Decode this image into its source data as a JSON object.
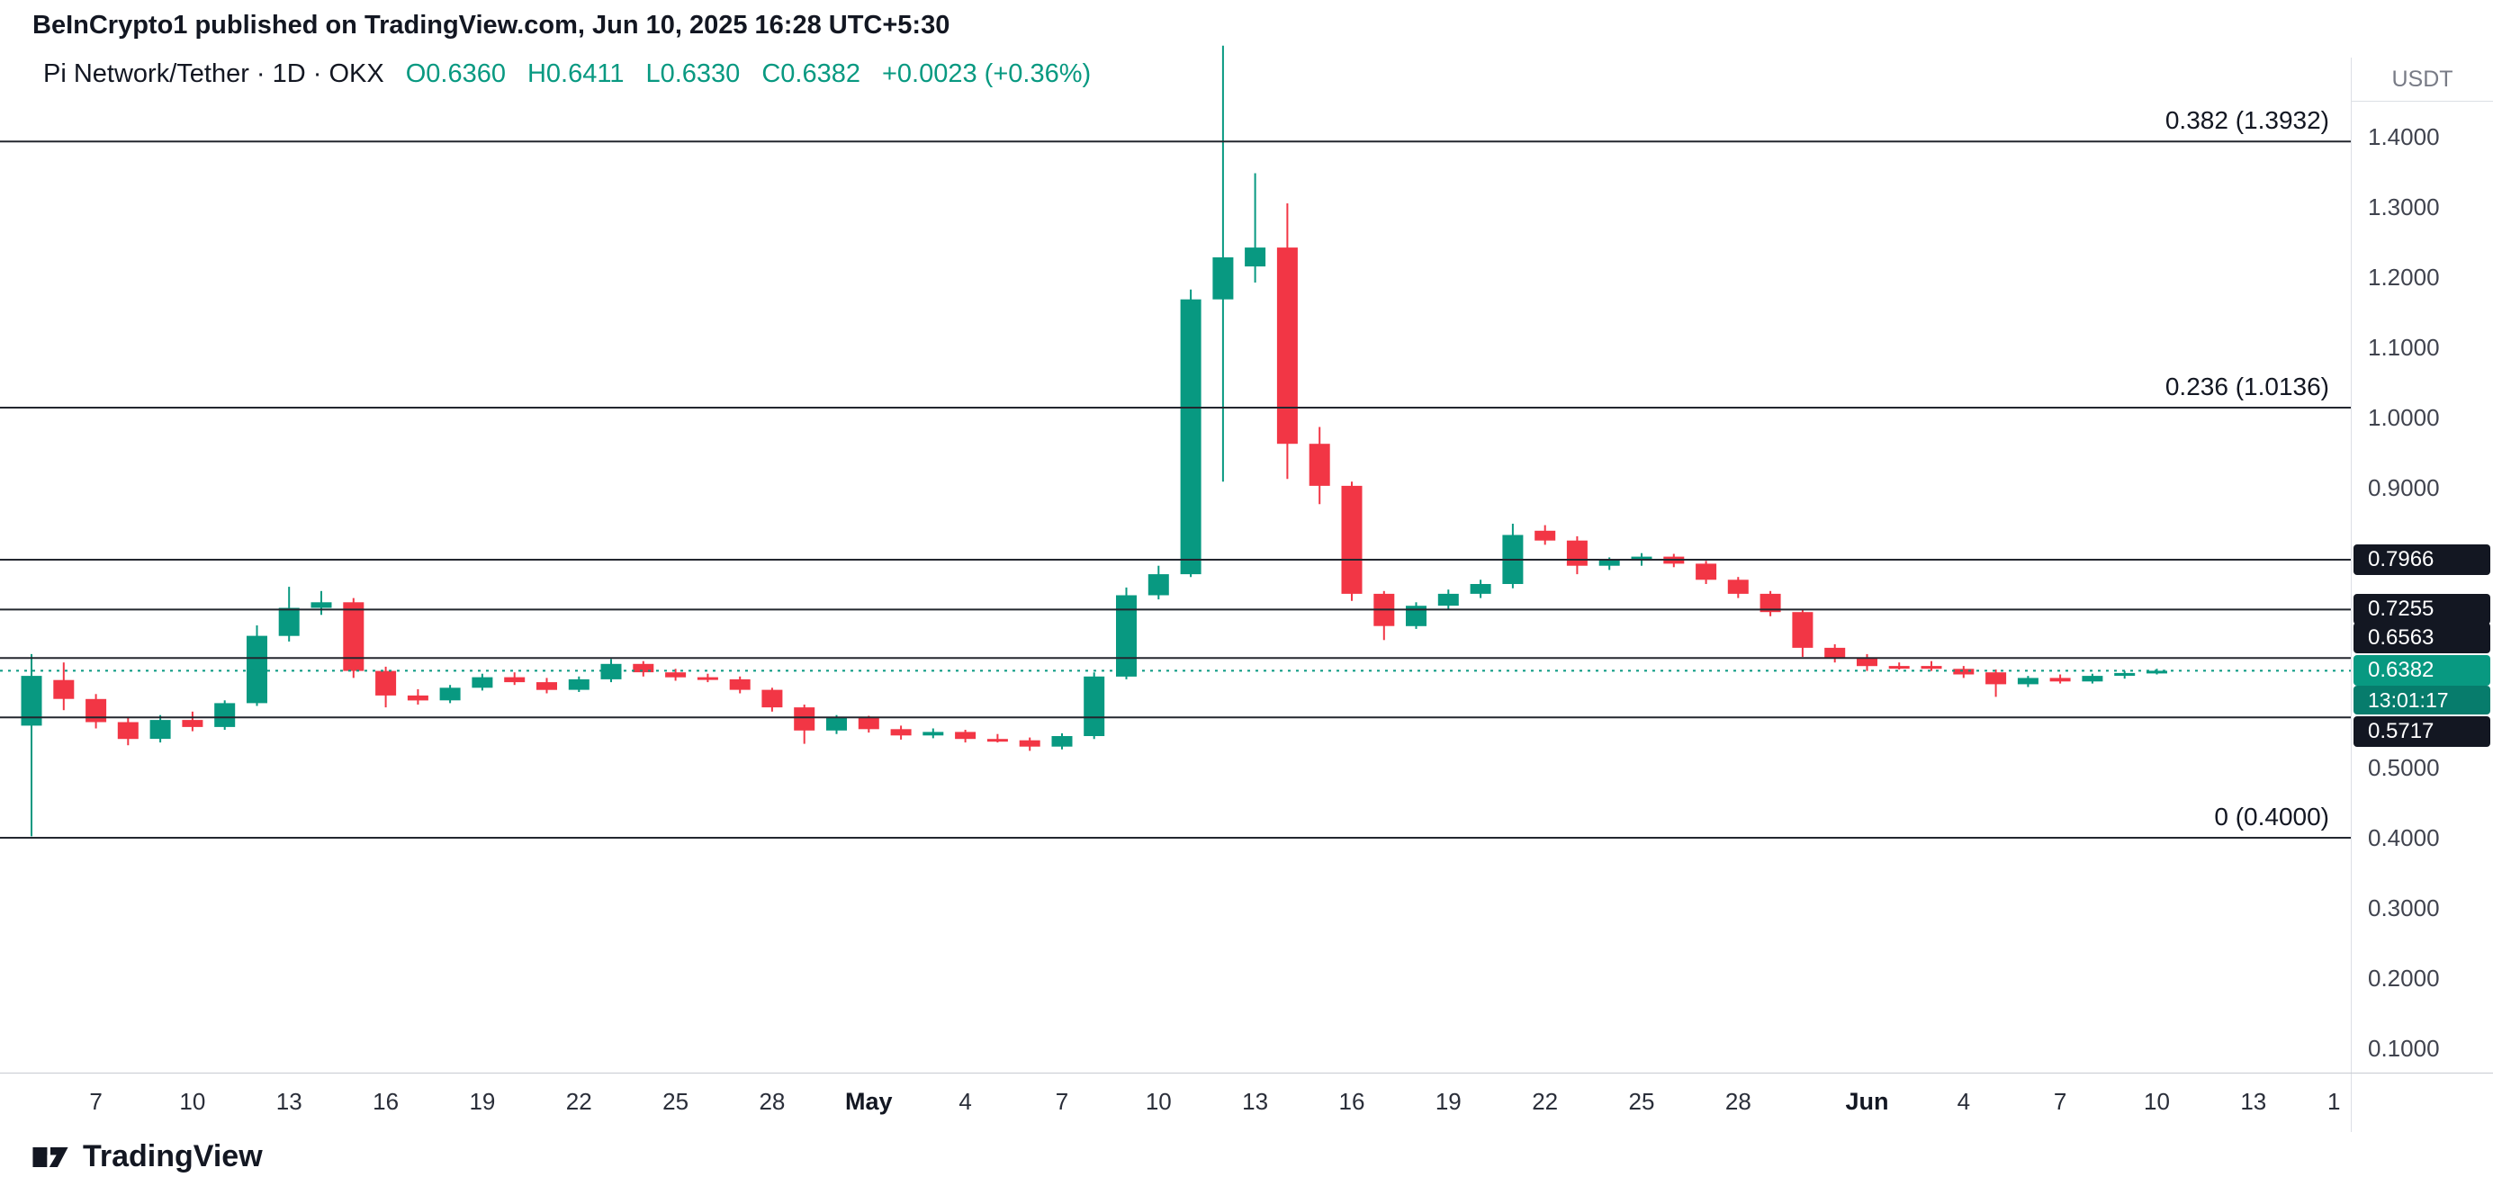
{
  "attribution": "BeInCrypto1 published on TradingView.com, Jun 10, 2025 16:28 UTC+5:30",
  "symbol_header": {
    "title": "Pi Network/Tether · 1D · OKX",
    "open": "O0.6360",
    "high": "H0.6411",
    "low": "L0.6330",
    "close": "C0.6382",
    "change": "+0.0023 (+0.36%)"
  },
  "price_axis": {
    "currency_label": "USDT",
    "ticks": [
      {
        "label": "1.4000",
        "price": 1.4
      },
      {
        "label": "1.3000",
        "price": 1.3
      },
      {
        "label": "1.2000",
        "price": 1.2
      },
      {
        "label": "1.1000",
        "price": 1.1
      },
      {
        "label": "1.0000",
        "price": 1.0
      },
      {
        "label": "0.9000",
        "price": 0.9
      },
      {
        "label": "0.5000",
        "price": 0.5
      },
      {
        "label": "0.4000",
        "price": 0.4
      },
      {
        "label": "0.3000",
        "price": 0.3
      },
      {
        "label": "0.2000",
        "price": 0.2
      },
      {
        "label": "0.1000",
        "price": 0.1
      }
    ],
    "badges": [
      {
        "label": "0.7966",
        "price": 0.7966
      },
      {
        "label": "0.7255",
        "price": 0.7255
      },
      {
        "label": "0.6563",
        "price": 0.6563
      },
      {
        "label": "0.5717",
        "price": 0.5717
      }
    ],
    "current": {
      "label": "0.6382",
      "countdown": "13:01:17"
    }
  },
  "time_axis": {
    "ticks": [
      {
        "label": "7",
        "day": 2
      },
      {
        "label": "10",
        "day": 5
      },
      {
        "label": "13",
        "day": 8
      },
      {
        "label": "16",
        "day": 11
      },
      {
        "label": "19",
        "day": 14
      },
      {
        "label": "22",
        "day": 17
      },
      {
        "label": "25",
        "day": 20
      },
      {
        "label": "28",
        "day": 23
      },
      {
        "label": "May",
        "day": 26,
        "bold": true
      },
      {
        "label": "4",
        "day": 29
      },
      {
        "label": "7",
        "day": 32
      },
      {
        "label": "10",
        "day": 35
      },
      {
        "label": "13",
        "day": 38
      },
      {
        "label": "16",
        "day": 41
      },
      {
        "label": "19",
        "day": 44
      },
      {
        "label": "22",
        "day": 47
      },
      {
        "label": "25",
        "day": 50
      },
      {
        "label": "28",
        "day": 53
      },
      {
        "label": "Jun",
        "day": 57,
        "bold": true
      },
      {
        "label": "4",
        "day": 60
      },
      {
        "label": "7",
        "day": 63
      },
      {
        "label": "10",
        "day": 66
      },
      {
        "label": "13",
        "day": 69
      },
      {
        "label": "1",
        "day": 71.5
      }
    ]
  },
  "footer": {
    "brand": "TradingView"
  },
  "colors": {
    "up": "#089981",
    "down": "#F23645",
    "level_line": "#23272f",
    "current_line": "#089981",
    "badge_bg": "#131722",
    "text_dark": "#131722",
    "text_muted": "#787b86",
    "border": "#dcdfe5"
  },
  "chart_data": {
    "type": "candlestick",
    "pair": "Pi Network/Tether",
    "interval": "1D",
    "exchange": "OKX",
    "quote_currency": "USDT",
    "open": 0.636,
    "high": 0.6411,
    "low": 0.633,
    "close": 0.6382,
    "change": "+0.0023 (+0.36%)",
    "current_price": 0.6382,
    "ylim": [
      0.1,
      1.4
    ],
    "fib_levels": [
      {
        "price": 1.3932,
        "label": "0.382 (1.3932)"
      },
      {
        "price": 1.0136,
        "label": "0.236 (1.0136)"
      },
      {
        "price": 0.7966
      },
      {
        "price": 0.7255
      },
      {
        "price": 0.6563
      },
      {
        "price": 0.5717
      },
      {
        "price": 0.4,
        "label": "0 (0.4000)"
      }
    ],
    "candles": [
      [
        0.56,
        0.662,
        0.402,
        0.631
      ],
      [
        0.625,
        0.65,
        0.582,
        0.598
      ],
      [
        0.598,
        0.605,
        0.556,
        0.565
      ],
      [
        0.565,
        0.572,
        0.532,
        0.541
      ],
      [
        0.541,
        0.575,
        0.536,
        0.568
      ],
      [
        0.568,
        0.58,
        0.552,
        0.558
      ],
      [
        0.558,
        0.596,
        0.554,
        0.592
      ],
      [
        0.592,
        0.703,
        0.588,
        0.688
      ],
      [
        0.688,
        0.758,
        0.68,
        0.728
      ],
      [
        0.728,
        0.752,
        0.718,
        0.736
      ],
      [
        0.736,
        0.742,
        0.628,
        0.638
      ],
      [
        0.638,
        0.644,
        0.586,
        0.603
      ],
      [
        0.603,
        0.612,
        0.59,
        0.596
      ],
      [
        0.596,
        0.618,
        0.592,
        0.614
      ],
      [
        0.614,
        0.634,
        0.61,
        0.629
      ],
      [
        0.629,
        0.636,
        0.618,
        0.622
      ],
      [
        0.622,
        0.628,
        0.606,
        0.611
      ],
      [
        0.611,
        0.63,
        0.608,
        0.626
      ],
      [
        0.626,
        0.655,
        0.622,
        0.648
      ],
      [
        0.648,
        0.652,
        0.63,
        0.636
      ],
      [
        0.636,
        0.641,
        0.624,
        0.629
      ],
      [
        0.629,
        0.634,
        0.622,
        0.626
      ],
      [
        0.626,
        0.63,
        0.606,
        0.611
      ],
      [
        0.611,
        0.614,
        0.58,
        0.586
      ],
      [
        0.586,
        0.59,
        0.534,
        0.553
      ],
      [
        0.553,
        0.575,
        0.548,
        0.571
      ],
      [
        0.571,
        0.574,
        0.55,
        0.555
      ],
      [
        0.555,
        0.56,
        0.54,
        0.546
      ],
      [
        0.546,
        0.556,
        0.542,
        0.551
      ],
      [
        0.551,
        0.554,
        0.536,
        0.541
      ],
      [
        0.541,
        0.548,
        0.536,
        0.539
      ],
      [
        0.539,
        0.543,
        0.524,
        0.53
      ],
      [
        0.53,
        0.549,
        0.526,
        0.545
      ],
      [
        0.545,
        0.636,
        0.541,
        0.63
      ],
      [
        0.63,
        0.757,
        0.626,
        0.746
      ],
      [
        0.746,
        0.788,
        0.74,
        0.776
      ],
      [
        0.776,
        1.182,
        0.772,
        1.168
      ],
      [
        1.168,
        1.53,
        0.908,
        1.228
      ],
      [
        1.215,
        1.348,
        1.192,
        1.242
      ],
      [
        1.242,
        1.305,
        0.912,
        0.962
      ],
      [
        0.962,
        0.986,
        0.876,
        0.902
      ],
      [
        0.902,
        0.908,
        0.738,
        0.748
      ],
      [
        0.748,
        0.752,
        0.682,
        0.702
      ],
      [
        0.702,
        0.736,
        0.698,
        0.731
      ],
      [
        0.731,
        0.754,
        0.726,
        0.748
      ],
      [
        0.748,
        0.768,
        0.742,
        0.762
      ],
      [
        0.762,
        0.848,
        0.756,
        0.832
      ],
      [
        0.838,
        0.846,
        0.818,
        0.824
      ],
      [
        0.824,
        0.83,
        0.776,
        0.788
      ],
      [
        0.788,
        0.8,
        0.782,
        0.796
      ],
      [
        0.796,
        0.806,
        0.788,
        0.801
      ],
      [
        0.801,
        0.805,
        0.786,
        0.791
      ],
      [
        0.791,
        0.795,
        0.762,
        0.768
      ],
      [
        0.768,
        0.772,
        0.742,
        0.748
      ],
      [
        0.748,
        0.752,
        0.716,
        0.722
      ],
      [
        0.722,
        0.726,
        0.658,
        0.671
      ],
      [
        0.671,
        0.676,
        0.65,
        0.656
      ],
      [
        0.656,
        0.662,
        0.638,
        0.645
      ],
      [
        0.645,
        0.65,
        0.64,
        0.643
      ],
      [
        0.645,
        0.652,
        0.638,
        0.641
      ],
      [
        0.641,
        0.645,
        0.628,
        0.633
      ],
      [
        0.636,
        0.64,
        0.601,
        0.619
      ],
      [
        0.619,
        0.631,
        0.615,
        0.628
      ],
      [
        0.628,
        0.633,
        0.62,
        0.623
      ],
      [
        0.623,
        0.634,
        0.62,
        0.631
      ],
      [
        0.631,
        0.638,
        0.627,
        0.635
      ],
      [
        0.636,
        0.6411,
        0.633,
        0.6382
      ]
    ]
  }
}
